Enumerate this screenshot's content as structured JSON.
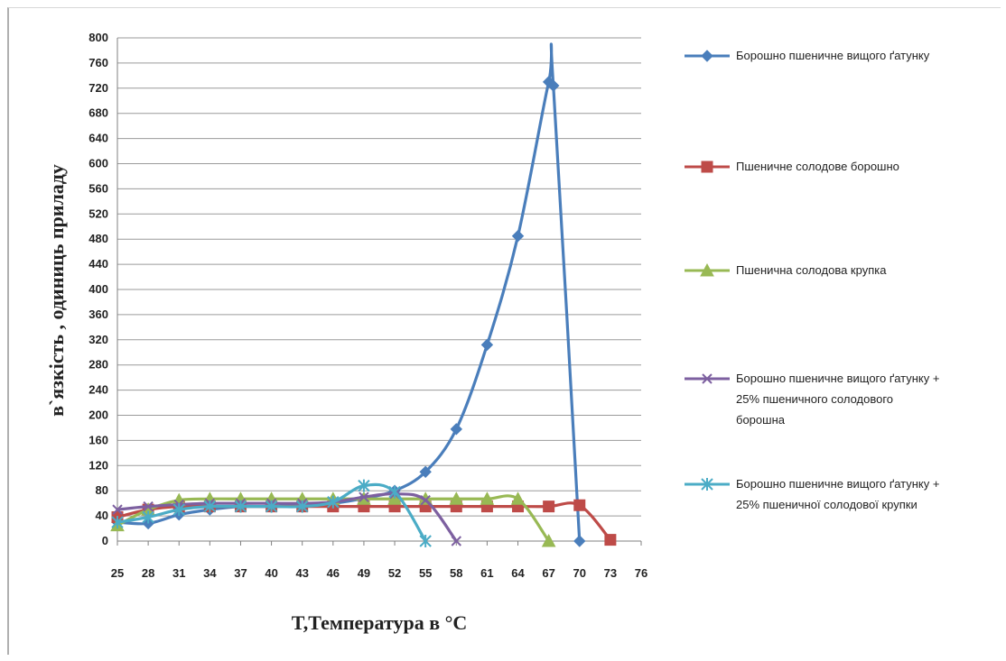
{
  "chart_data": {
    "type": "line",
    "xlabel": "T,Температура  в °C",
    "ylabel": "в`язкість , одиниць приладу",
    "categories": [
      "25",
      "28",
      "31",
      "34",
      "37",
      "40",
      "43",
      "46",
      "49",
      "52",
      "55",
      "58",
      "61",
      "64",
      "67",
      "70",
      "73",
      "76"
    ],
    "ylim": [
      0,
      800
    ],
    "yticks": [
      0,
      40,
      80,
      120,
      160,
      200,
      240,
      280,
      320,
      360,
      400,
      440,
      480,
      520,
      560,
      600,
      640,
      680,
      720,
      760,
      800
    ],
    "grid": true,
    "legend_position": "right",
    "series": [
      {
        "name": "Борошно пшеничне вищого ґатунку",
        "color": "#4a7ebb",
        "marker": "diamond",
        "points": [
          [
            0,
            30
          ],
          [
            1,
            28
          ],
          [
            2,
            42
          ],
          [
            3,
            50
          ],
          [
            4,
            55
          ],
          [
            5,
            55
          ],
          [
            6,
            58
          ],
          [
            7,
            60
          ],
          [
            8,
            68
          ],
          [
            9,
            80
          ],
          [
            10,
            110
          ],
          [
            11,
            178
          ],
          [
            12,
            312
          ],
          [
            13,
            485
          ],
          [
            14,
            730
          ],
          [
            14.15,
            724
          ],
          [
            15,
            0
          ]
        ]
      },
      {
        "name": "Пшеничне солодове борошно",
        "color": "#be4b48",
        "marker": "square",
        "points": [
          [
            0,
            38
          ],
          [
            1,
            50
          ],
          [
            2,
            55
          ],
          [
            3,
            55
          ],
          [
            4,
            55
          ],
          [
            5,
            55
          ],
          [
            6,
            55
          ],
          [
            7,
            55
          ],
          [
            8,
            55
          ],
          [
            9,
            55
          ],
          [
            10,
            55
          ],
          [
            11,
            55
          ],
          [
            12,
            55
          ],
          [
            13,
            55
          ],
          [
            14,
            55
          ],
          [
            15,
            57
          ],
          [
            16,
            2
          ]
        ]
      },
      {
        "name": "Пшенична солодова крупка",
        "color": "#98b954",
        "marker": "triangle",
        "points": [
          [
            0,
            25
          ],
          [
            1,
            50
          ],
          [
            2,
            65
          ],
          [
            3,
            67
          ],
          [
            4,
            67
          ],
          [
            5,
            67
          ],
          [
            6,
            67
          ],
          [
            7,
            67
          ],
          [
            8,
            67
          ],
          [
            9,
            67
          ],
          [
            10,
            67
          ],
          [
            11,
            67
          ],
          [
            12,
            67
          ],
          [
            13,
            67
          ],
          [
            14,
            0
          ]
        ]
      },
      {
        "name": "Борошно пшеничне вищого ґатунку + 25% пшеничного солодового борошна",
        "color": "#7d60a0",
        "marker": "x",
        "points": [
          [
            0,
            50
          ],
          [
            1,
            55
          ],
          [
            2,
            58
          ],
          [
            3,
            60
          ],
          [
            4,
            60
          ],
          [
            5,
            60
          ],
          [
            6,
            60
          ],
          [
            7,
            62
          ],
          [
            8,
            70
          ],
          [
            9,
            75
          ],
          [
            10,
            65
          ],
          [
            11,
            0
          ]
        ]
      },
      {
        "name": "Борошно пшеничне вищого ґатунку + 25% пшеничної солодової крупки",
        "color": "#4bacc6",
        "marker": "asterisk",
        "points": [
          [
            0,
            30
          ],
          [
            1,
            38
          ],
          [
            2,
            50
          ],
          [
            3,
            55
          ],
          [
            4,
            55
          ],
          [
            5,
            55
          ],
          [
            6,
            55
          ],
          [
            7,
            62
          ],
          [
            8,
            88
          ],
          [
            9,
            78
          ],
          [
            10,
            0
          ]
        ]
      }
    ]
  },
  "legend": {
    "items": [
      [
        "Борошно пшеничне вищого ґатунку"
      ],
      [
        "Пшеничне солодове борошно"
      ],
      [
        "Пшенична солодова крупка"
      ],
      [
        "Борошно пшеничне вищого ґатунку +",
        "25% пшеничного солодового",
        "борошна"
      ],
      [
        "Борошно пшеничне вищого ґатунку +",
        "25% пшеничної солодової крупки"
      ]
    ]
  }
}
